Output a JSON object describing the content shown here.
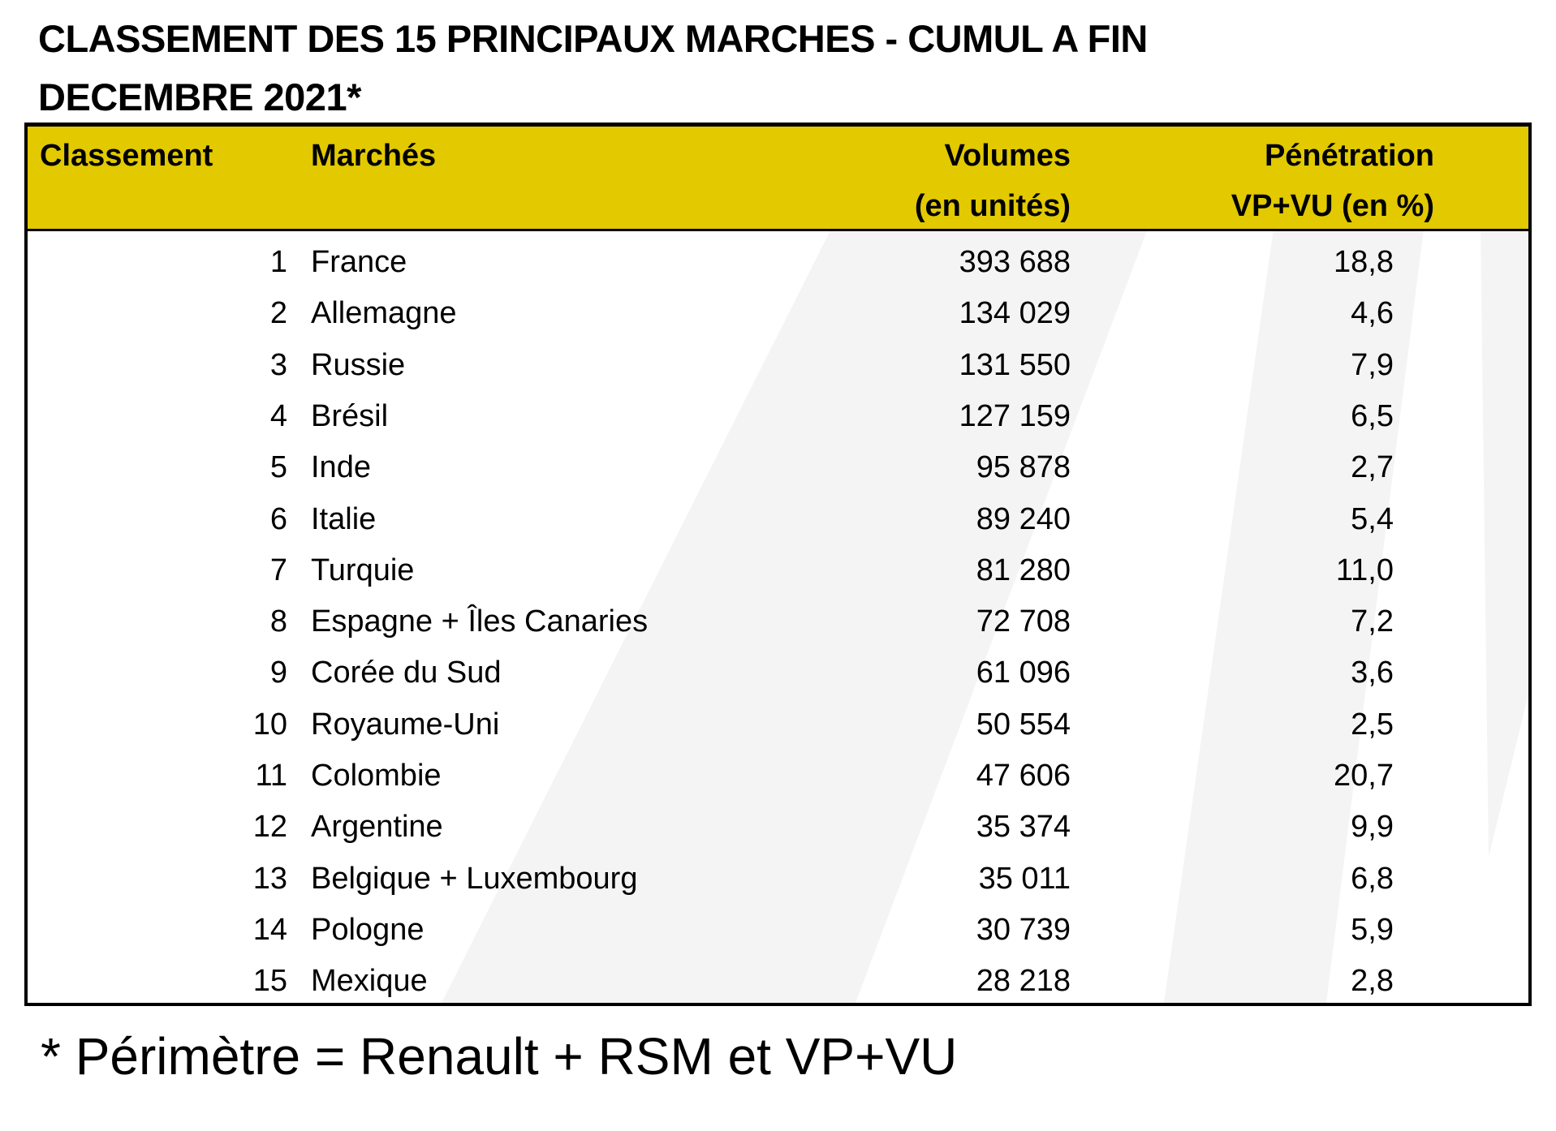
{
  "title": {
    "line1": "CLASSEMENT DES 15 PRINCIPAUX MARCHES - CUMUL A FIN",
    "line2": "DECEMBRE 2021*"
  },
  "header": {
    "rank": "Classement",
    "market": "Marchés",
    "volumes_line1": "Volumes",
    "volumes_line2": "(en unités)",
    "penetration_line1": "Pénétration",
    "penetration_line2": "VP+VU (en %)"
  },
  "rows": [
    {
      "rank": "1",
      "market": "France",
      "volume": "393 688",
      "penetration": "18,8"
    },
    {
      "rank": "2",
      "market": "Allemagne",
      "volume": "134 029",
      "penetration": "4,6"
    },
    {
      "rank": "3",
      "market": "Russie",
      "volume": "131 550",
      "penetration": "7,9"
    },
    {
      "rank": "4",
      "market": "Brésil",
      "volume": "127 159",
      "penetration": "6,5"
    },
    {
      "rank": "5",
      "market": "Inde",
      "volume": "95 878",
      "penetration": "2,7"
    },
    {
      "rank": "6",
      "market": "Italie",
      "volume": "89 240",
      "penetration": "5,4"
    },
    {
      "rank": "7",
      "market": "Turquie",
      "volume": "81 280",
      "penetration": "11,0"
    },
    {
      "rank": "8",
      "market": "Espagne + Îles Canaries",
      "volume": "72 708",
      "penetration": "7,2"
    },
    {
      "rank": "9",
      "market": "Corée du Sud",
      "volume": "61 096",
      "penetration": "3,6"
    },
    {
      "rank": "10",
      "market": "Royaume-Uni",
      "volume": "50 554",
      "penetration": "2,5"
    },
    {
      "rank": "11",
      "market": "Colombie",
      "volume": "47 606",
      "penetration": "20,7"
    },
    {
      "rank": "12",
      "market": "Argentine",
      "volume": "35 374",
      "penetration": "9,9"
    },
    {
      "rank": "13",
      "market": "Belgique + Luxembourg",
      "volume": "35 011",
      "penetration": "6,8"
    },
    {
      "rank": "14",
      "market": "Pologne",
      "volume": "30 739",
      "penetration": "5,9"
    },
    {
      "rank": "15",
      "market": "Mexique",
      "volume": "28 218",
      "penetration": "2,8"
    }
  ],
  "footnote": "* Périmètre = Renault + RSM et VP+VU",
  "colors": {
    "header_bg": "#e2c900",
    "stripe": "#f4f4f4"
  }
}
